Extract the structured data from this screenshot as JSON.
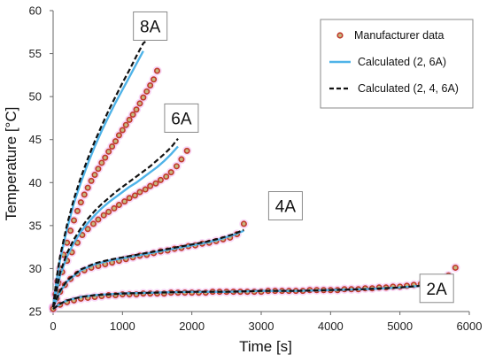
{
  "chart_data": {
    "type": "scatter",
    "xlabel": "Time [s]",
    "ylabel": "Temperature [°C]",
    "xlim": [
      0,
      6000
    ],
    "ylim": [
      25,
      60
    ],
    "xticks": [
      0,
      1000,
      2000,
      3000,
      4000,
      5000,
      6000
    ],
    "yticks": [
      25,
      30,
      35,
      40,
      45,
      50,
      55,
      60
    ],
    "grid": false,
    "legend_position": "top-right",
    "curve_labels": [
      {
        "text": "8A",
        "x": 1400,
        "y": 58.2
      },
      {
        "text": "6A",
        "x": 1850,
        "y": 47.5
      },
      {
        "text": "4A",
        "x": 3350,
        "y": 37.3
      },
      {
        "text": "2A",
        "x": 5530,
        "y": 27.7
      }
    ],
    "series": [
      {
        "name": "Manufacturer data",
        "kind": "markers",
        "color": "#c0392b",
        "groups": [
          {
            "current": "8A",
            "x": [
              0,
              30,
              60,
              100,
              150,
              200,
              250,
              300,
              350,
              400,
              450,
              500,
              550,
              600,
              650,
              700,
              750,
              800,
              850,
              900,
              950,
              1000,
              1050,
              1100,
              1150,
              1200,
              1250,
              1300,
              1350,
              1400,
              1450,
              1500
            ],
            "y": [
              25.5,
              27,
              28.5,
              30,
              31.6,
              33,
              34.4,
              35.6,
              36.7,
              37.7,
              38.6,
              39.4,
              40.2,
              40.9,
              41.6,
              42.3,
              42.9,
              43.6,
              44.2,
              44.8,
              45.5,
              46.1,
              46.7,
              47.3,
              47.9,
              48.5,
              49.2,
              49.9,
              50.6,
              51.3,
              52,
              53
            ]
          },
          {
            "current": "6A",
            "x": [
              0,
              40,
              80,
              130,
              200,
              270,
              350,
              420,
              500,
              580,
              650,
              730,
              800,
              880,
              950,
              1030,
              1100,
              1180,
              1250,
              1330,
              1400,
              1480,
              1550,
              1630,
              1700,
              1780,
              1850,
              1930
            ],
            "y": [
              25.5,
              27,
              28.3,
              29.6,
              30.9,
              31.9,
              33,
              33.9,
              34.6,
              35.2,
              35.7,
              36.2,
              36.6,
              37,
              37.4,
              37.8,
              38.2,
              38.5,
              38.9,
              39.2,
              39.6,
              39.9,
              40.3,
              40.7,
              41.2,
              41.9,
              42.7,
              43.7
            ]
          },
          {
            "current": "4A",
            "x": [
              0,
              50,
              100,
              170,
              250,
              350,
              450,
              550,
              650,
              750,
              850,
              950,
              1050,
              1150,
              1250,
              1350,
              1450,
              1550,
              1650,
              1750,
              1850,
              1950,
              2050,
              2150,
              2250,
              2350,
              2450,
              2550,
              2650,
              2750
            ],
            "y": [
              25.5,
              26.5,
              27.3,
              28.1,
              28.8,
              29.4,
              29.8,
              30.1,
              30.3,
              30.5,
              30.7,
              30.9,
              31.1,
              31.3,
              31.5,
              31.6,
              31.8,
              32,
              32.1,
              32.3,
              32.4,
              32.6,
              32.7,
              32.9,
              33,
              33.2,
              33.4,
              33.6,
              34,
              35.2
            ]
          },
          {
            "current": "2A",
            "x": [
              0,
              100,
              200,
              300,
              400,
              500,
              600,
              700,
              800,
              900,
              1000,
              1100,
              1200,
              1300,
              1400,
              1500,
              1600,
              1700,
              1800,
              1900,
              2000,
              2100,
              2200,
              2300,
              2400,
              2500,
              2600,
              2700,
              2800,
              2900,
              3000,
              3100,
              3200,
              3300,
              3400,
              3500,
              3600,
              3700,
              3800,
              3900,
              4000,
              4100,
              4200,
              4300,
              4400,
              4500,
              4600,
              4700,
              4800,
              4900,
              5000,
              5100,
              5200,
              5300,
              5400,
              5500,
              5600,
              5700,
              5800
            ],
            "y": [
              25.3,
              25.8,
              26.1,
              26.3,
              26.5,
              26.6,
              26.7,
              26.8,
              26.9,
              26.9,
              27,
              27,
              27,
              27.1,
              27.1,
              27.1,
              27.1,
              27.2,
              27.2,
              27.2,
              27.2,
              27.2,
              27.2,
              27.3,
              27.3,
              27.3,
              27.3,
              27.3,
              27.3,
              27.3,
              27.3,
              27.4,
              27.4,
              27.4,
              27.4,
              27.4,
              27.4,
              27.5,
              27.5,
              27.5,
              27.5,
              27.5,
              27.6,
              27.6,
              27.6,
              27.7,
              27.7,
              27.8,
              27.8,
              27.9,
              27.9,
              28,
              28.1,
              28.2,
              28.4,
              28.6,
              28.8,
              29.2,
              30.1
            ]
          }
        ]
      },
      {
        "name": "Calculated (2, 6A)",
        "kind": "line",
        "color": "#4fb3e8",
        "dash": "solid",
        "groups": [
          {
            "current": "8A",
            "x": [
              0,
              50,
              100,
              200,
              300,
              400,
              500,
              600,
              700,
              800,
              900,
              1000,
              1100,
              1200,
              1300
            ],
            "y": [
              25.5,
              28.6,
              31,
              34.6,
              37.6,
              40,
              42.2,
              44.2,
              46,
              47.7,
              49.3,
              50.8,
              52.3,
              53.8,
              55.3
            ]
          },
          {
            "current": "6A",
            "x": [
              0,
              100,
              200,
              300,
              400,
              500,
              600,
              700,
              800,
              900,
              1000,
              1100,
              1200,
              1300,
              1400,
              1500,
              1600,
              1700,
              1800
            ],
            "y": [
              25.5,
              29.2,
              31.4,
              33,
              34.3,
              35.3,
              36.2,
              37,
              37.7,
              38.3,
              38.9,
              39.5,
              40,
              40.6,
              41.2,
              41.8,
              42.5,
              43.3,
              44.2
            ]
          },
          {
            "current": "4A",
            "x": [
              0,
              100,
              200,
              400,
              600,
              800,
              1000,
              1200,
              1400,
              1600,
              1800,
              2000,
              2200,
              2400,
              2600,
              2750
            ],
            "y": [
              25.5,
              27.3,
              28.5,
              29.8,
              30.5,
              30.9,
              31.2,
              31.5,
              31.8,
              32.1,
              32.4,
              32.7,
              33,
              33.4,
              33.9,
              34.4
            ]
          },
          {
            "current": "2A",
            "x": [
              0,
              100,
              200,
              400,
              600,
              800,
              1000,
              1500,
              2000,
              2500,
              3000,
              3500,
              4000,
              4500,
              5000,
              5300,
              5500,
              5700,
              5760
            ],
            "y": [
              25.3,
              25.9,
              26.3,
              26.7,
              26.9,
              27,
              27.1,
              27.2,
              27.3,
              27.3,
              27.4,
              27.4,
              27.5,
              27.6,
              27.8,
              28,
              28.2,
              28.6,
              28.9
            ]
          }
        ]
      },
      {
        "name": "Calculated (2, 4, 6A)",
        "kind": "line",
        "color": "#111111",
        "dash": "dashed",
        "groups": [
          {
            "current": "8A",
            "x": [
              0,
              50,
              100,
              200,
              300,
              400,
              500,
              600,
              700,
              800,
              900,
              1000,
              1100,
              1200,
              1300,
              1330
            ],
            "y": [
              25.5,
              28.9,
              31.4,
              35.1,
              38.1,
              40.6,
              42.8,
              44.8,
              46.6,
              48.4,
              50,
              51.6,
              53.1,
              54.7,
              56.2,
              56.4
            ]
          },
          {
            "current": "6A",
            "x": [
              0,
              100,
              200,
              300,
              400,
              500,
              600,
              700,
              800,
              900,
              1000,
              1100,
              1200,
              1300,
              1400,
              1500,
              1600,
              1700,
              1800
            ],
            "y": [
              25.5,
              29.5,
              31.8,
              33.4,
              34.7,
              35.8,
              36.7,
              37.5,
              38.2,
              38.9,
              39.5,
              40.1,
              40.7,
              41.3,
              41.9,
              42.6,
              43.3,
              44.1,
              45.1
            ]
          },
          {
            "current": "4A",
            "x": [
              0,
              100,
              200,
              400,
              600,
              800,
              1000,
              1200,
              1400,
              1600,
              1800,
              2000,
              2200,
              2400,
              2600,
              2750
            ],
            "y": [
              25.5,
              27.4,
              28.6,
              29.9,
              30.6,
              31,
              31.3,
              31.6,
              31.9,
              32.2,
              32.5,
              32.8,
              33.1,
              33.5,
              34,
              34.5
            ]
          },
          {
            "current": "2A",
            "x": [
              0,
              100,
              200,
              400,
              600,
              800,
              1000,
              1500,
              2000,
              2500,
              3000,
              3500,
              4000,
              4500,
              5000,
              5300,
              5500,
              5700,
              5780
            ],
            "y": [
              25.3,
              25.9,
              26.3,
              26.7,
              26.9,
              27,
              27.1,
              27.2,
              27.3,
              27.3,
              27.4,
              27.4,
              27.5,
              27.6,
              27.8,
              28,
              28.2,
              28.6,
              29
            ]
          }
        ]
      }
    ]
  }
}
